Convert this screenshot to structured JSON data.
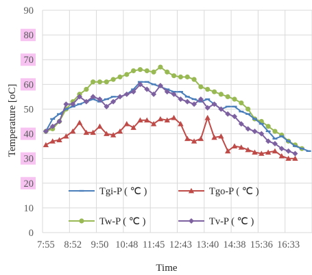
{
  "chart_data": {
    "type": "line",
    "xlabel": "Time",
    "ylabel": "Temperature [oC]",
    "ylim": [
      0,
      90
    ],
    "yticks": [
      "0",
      "10",
      "20",
      "30",
      "40",
      "50",
      "60",
      "70",
      "80",
      "90"
    ],
    "highlighted_yticks": [
      "20",
      "30",
      "40",
      "60",
      "70",
      "80"
    ],
    "xtick_labels": [
      "7:55",
      "8:52",
      "9:50",
      "10:48",
      "11:45",
      "12:43",
      "13:40",
      "14:38",
      "15:36",
      "16:33"
    ],
    "grid": true,
    "legend_placement": "bottom, 2x2",
    "colors": {
      "tgi": "#4a7ebb",
      "tgo": "#be4b48",
      "tw": "#98b954",
      "tv": "#7d60a0",
      "highlight": "#f7c4f2"
    },
    "series": [
      {
        "name": "Tgi-P ( ℃ )",
        "marker": "dash",
        "values": [
          41,
          46,
          48,
          50,
          51,
          52,
          53,
          54,
          53,
          54,
          55,
          55,
          56,
          58,
          61,
          61,
          60,
          59,
          58,
          57,
          57,
          55,
          54,
          53,
          54,
          52,
          50,
          51,
          51,
          49,
          48,
          46,
          44,
          41,
          38,
          39,
          37,
          35,
          34,
          33
        ]
      },
      {
        "name": "Tgo-P ( ℃ )",
        "marker": "triangle",
        "values": [
          35.5,
          37,
          37.5,
          39,
          41,
          44.5,
          40.5,
          40.5,
          43,
          40,
          39.5,
          41,
          44,
          42.5,
          45.5,
          45.5,
          44,
          46,
          45.5,
          46.5,
          44,
          38,
          37,
          38,
          46.5,
          38.5,
          39,
          33,
          35,
          34.5,
          33.5,
          32.5,
          32,
          32.5,
          33,
          31,
          30,
          30
        ]
      },
      {
        "name": "Tw-P ( ℃ )",
        "marker": "circle",
        "values": [
          41,
          42,
          45,
          50,
          53,
          56,
          58,
          61,
          61,
          61,
          62,
          63,
          64,
          65.5,
          66,
          65.5,
          65,
          67,
          65,
          63.5,
          63,
          63,
          62,
          59,
          58,
          57,
          56,
          55,
          54,
          52.5,
          50,
          46,
          45,
          43,
          41,
          39.5,
          37,
          35.5,
          34
        ]
      },
      {
        "name": "Tv-P ( ℃ )",
        "marker": "diamond",
        "values": [
          41,
          43,
          45,
          52,
          52,
          55,
          53,
          55,
          54,
          51,
          53,
          55,
          56,
          57,
          60,
          58,
          56,
          59.5,
          57,
          56,
          54,
          53,
          52,
          54,
          50.5,
          52,
          50,
          48,
          47,
          44,
          42,
          41,
          40,
          37,
          36,
          34,
          33,
          32
        ]
      }
    ]
  }
}
